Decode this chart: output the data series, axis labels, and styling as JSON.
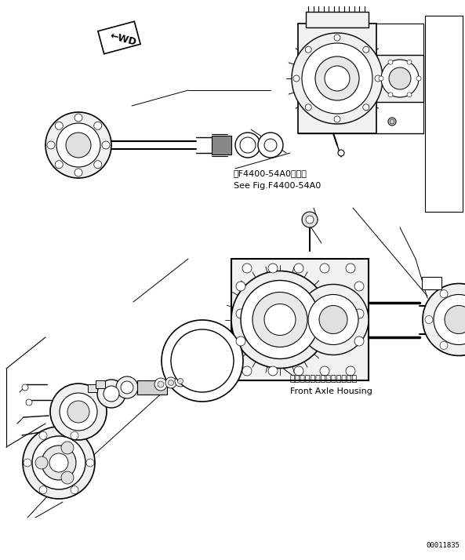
{
  "background_color": "#ffffff",
  "fig_width": 5.93,
  "fig_height": 7.14,
  "dpi": 100,
  "annotation1_line1": "第F4400-54A0图参照",
  "annotation1_line2": "See Fig.F4400-54A0",
  "annotation2_line1": "フロントアクスルハウジング",
  "annotation2_line2": "Front Axle Housing",
  "part_number": "00011835",
  "fwd_text": "←WD",
  "lc": "#000000",
  "lw": 0.7
}
